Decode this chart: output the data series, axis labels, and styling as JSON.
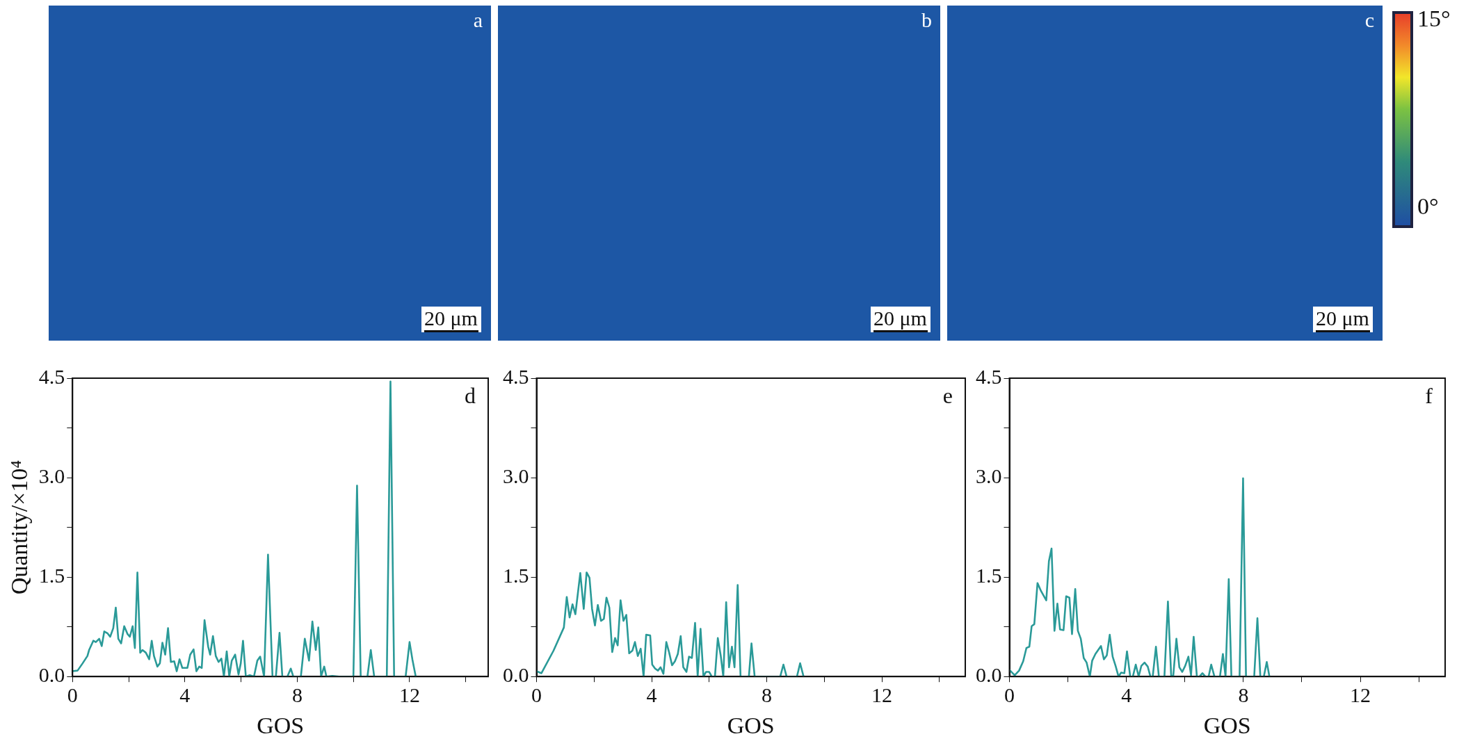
{
  "chart_data": [
    {
      "type": "other",
      "annotations": [
        "a",
        "20 μm"
      ]
    },
    {
      "type": "other",
      "annotations": [
        "b",
        "20 μm"
      ]
    },
    {
      "type": "other",
      "annotations": [
        "c",
        "20 μm",
        "15°",
        "0°"
      ]
    },
    {
      "type": "line",
      "xlabel": "GOS",
      "ylabel": "Quantity/×10⁴",
      "annotations": [
        "d"
      ],
      "marker": "none",
      "line_style": "solid",
      "xlim": [
        0,
        14.8
      ],
      "ylim": [
        0,
        4.5
      ],
      "xticks": [
        {
          "value": 0,
          "label": "0"
        },
        {
          "value": 2,
          "label": null
        },
        {
          "value": 4,
          "label": "4"
        },
        {
          "value": 6,
          "label": null
        },
        {
          "value": 8,
          "label": "8"
        },
        {
          "value": 10,
          "label": null
        },
        {
          "value": 12,
          "label": "12"
        },
        {
          "value": 14,
          "label": null
        }
      ],
      "yticks": [
        {
          "value": 0,
          "label": "0.0"
        },
        {
          "value": 0.75,
          "label": null
        },
        {
          "value": 1.5,
          "label": "1.5"
        },
        {
          "value": 2.25,
          "label": null
        },
        {
          "value": 3,
          "label": "3.0"
        },
        {
          "value": 3.75,
          "label": null
        },
        {
          "value": 4.5,
          "label": "4.5"
        }
      ],
      "series": [
        {
          "color": "#2a9a98",
          "x": [
            0,
            0.18,
            0.36,
            0.53,
            0.59,
            0.74,
            0.83,
            0.95,
            1.04,
            1.13,
            1.25,
            1.34,
            1.45,
            1.54,
            1.63,
            1.73,
            1.84,
            1.96,
            2.04,
            2.14,
            2.22,
            2.31,
            2.41,
            2.49,
            2.61,
            2.73,
            2.82,
            2.9,
            3.02,
            3.11,
            3.2,
            3.3,
            3.4,
            3.5,
            3.62,
            3.71,
            3.81,
            3.91,
            4.09,
            4.19,
            4.31,
            4.41,
            4.51,
            4.6,
            4.7,
            4.83,
            4.9,
            5.0,
            5.1,
            5.2,
            5.3,
            5.39,
            5.49,
            5.58,
            5.67,
            5.79,
            5.91,
            5.99,
            6.07,
            6.17,
            6.31,
            6.46,
            6.58,
            6.68,
            6.82,
            6.96,
            7.12,
            7.24,
            7.37,
            7.47,
            7.65,
            7.77,
            7.86,
            8.13,
            8.27,
            8.42,
            8.54,
            8.66,
            8.75,
            8.85,
            8.96,
            9.04,
            9.25,
            9.49,
            10.0,
            10.13,
            10.26,
            10.5,
            10.62,
            10.74,
            11.19,
            11.32,
            11.45,
            11.86,
            12.0,
            12.1,
            12.22
          ],
          "values": [
            0.08,
            0.09,
            0.2,
            0.31,
            0.4,
            0.54,
            0.52,
            0.57,
            0.46,
            0.68,
            0.65,
            0.6,
            0.73,
            1.04,
            0.57,
            0.5,
            0.76,
            0.64,
            0.6,
            0.76,
            0.43,
            1.57,
            0.36,
            0.4,
            0.36,
            0.26,
            0.54,
            0.31,
            0.15,
            0.2,
            0.51,
            0.33,
            0.73,
            0.22,
            0.23,
            0.08,
            0.26,
            0.13,
            0.13,
            0.33,
            0.41,
            0.08,
            0.15,
            0.13,
            0.85,
            0.45,
            0.33,
            0.61,
            0.31,
            0.22,
            0.27,
            0,
            0.38,
            0,
            0.24,
            0.33,
            0.03,
            0.2,
            0.54,
            0,
            0.02,
            0,
            0.24,
            0.3,
            0,
            1.84,
            0,
            0,
            0.66,
            0,
            0,
            0.12,
            0,
            0,
            0.57,
            0.24,
            0.83,
            0.4,
            0.74,
            0,
            0.15,
            0,
            0.01,
            0,
            0,
            2.88,
            0,
            0,
            0.4,
            0,
            0,
            4.45,
            0,
            0,
            0.52,
            0.26,
            0
          ]
        }
      ]
    },
    {
      "type": "line",
      "xlabel": "GOS",
      "annotations": [
        "e"
      ],
      "marker": "none",
      "line_style": "solid",
      "xlim": [
        0,
        14.9
      ],
      "ylim": [
        0,
        4.5
      ],
      "xticks": [
        {
          "value": 0,
          "label": "0"
        },
        {
          "value": 2,
          "label": null
        },
        {
          "value": 4,
          "label": "4"
        },
        {
          "value": 6,
          "label": null
        },
        {
          "value": 8,
          "label": "8"
        },
        {
          "value": 10,
          "label": null
        },
        {
          "value": 12,
          "label": "12"
        },
        {
          "value": 14,
          "label": null
        }
      ],
      "yticks": [
        {
          "value": 0,
          "label": "0.0"
        },
        {
          "value": 0.75,
          "label": null
        },
        {
          "value": 1.5,
          "label": "1.5"
        },
        {
          "value": 2.25,
          "label": null
        },
        {
          "value": 3,
          "label": "3.0"
        },
        {
          "value": 3.75,
          "label": null
        },
        {
          "value": 4.5,
          "label": "4.5"
        }
      ],
      "series": [
        {
          "color": "#2a9a98",
          "x": [
            0,
            0.17,
            0.59,
            0.95,
            1.05,
            1.15,
            1.25,
            1.35,
            1.52,
            1.64,
            1.74,
            1.84,
            1.93,
            2.03,
            2.13,
            2.24,
            2.34,
            2.43,
            2.53,
            2.63,
            2.73,
            2.82,
            2.92,
            3.02,
            3.12,
            3.22,
            3.33,
            3.42,
            3.52,
            3.62,
            3.72,
            3.81,
            3.95,
            4.02,
            4.12,
            4.22,
            4.31,
            4.41,
            4.51,
            4.61,
            4.71,
            4.81,
            4.91,
            5.01,
            5.1,
            5.21,
            5.3,
            5.4,
            5.51,
            5.6,
            5.7,
            5.8,
            5.89,
            6.0,
            6.09,
            6.2,
            6.3,
            6.4,
            6.49,
            6.59,
            6.69,
            6.79,
            6.88,
            6.99,
            7.09,
            7.38,
            7.47,
            7.58,
            8.47,
            8.58,
            8.69,
            9.05,
            9.16,
            9.28
          ],
          "values": [
            0.08,
            0.05,
            0.39,
            0.74,
            1.2,
            0.89,
            1.09,
            0.94,
            1.56,
            1.02,
            1.57,
            1.49,
            1.02,
            0.77,
            1.08,
            0.84,
            0.87,
            1.19,
            1.04,
            0.37,
            0.58,
            0.47,
            1.15,
            0.84,
            0.93,
            0.35,
            0.39,
            0.52,
            0.31,
            0.42,
            0,
            0.63,
            0.62,
            0.18,
            0.12,
            0.09,
            0.14,
            0.04,
            0.52,
            0.36,
            0.17,
            0.23,
            0.34,
            0.61,
            0.14,
            0.07,
            0.3,
            0.28,
            0.81,
            0,
            0.72,
            0,
            0.07,
            0.07,
            0,
            0,
            0.58,
            0.32,
            0,
            1.12,
            0.14,
            0.45,
            0.14,
            1.38,
            0,
            0,
            0.5,
            0,
            0,
            0.18,
            0,
            0,
            0.2,
            0
          ]
        }
      ]
    },
    {
      "type": "line",
      "xlabel": "GOS",
      "annotations": [
        "f"
      ],
      "marker": "none",
      "line_style": "solid",
      "xlim": [
        0,
        14.9
      ],
      "ylim": [
        0,
        4.5
      ],
      "xticks": [
        {
          "value": 0,
          "label": "0"
        },
        {
          "value": 2,
          "label": null
        },
        {
          "value": 4,
          "label": "4"
        },
        {
          "value": 6,
          "label": null
        },
        {
          "value": 8,
          "label": "8"
        },
        {
          "value": 10,
          "label": null
        },
        {
          "value": 12,
          "label": "12"
        },
        {
          "value": 14,
          "label": null
        }
      ],
      "yticks": [
        {
          "value": 0,
          "label": "0.0"
        },
        {
          "value": 0.75,
          "label": null
        },
        {
          "value": 1.5,
          "label": "1.5"
        },
        {
          "value": 2.25,
          "label": null
        },
        {
          "value": 3,
          "label": "3.0"
        },
        {
          "value": 3.75,
          "label": null
        },
        {
          "value": 4.5,
          "label": "4.5"
        }
      ],
      "series": [
        {
          "color": "#2a9a98",
          "x": [
            0,
            0.18,
            0.33,
            0.47,
            0.58,
            0.68,
            0.76,
            0.85,
            0.96,
            1.08,
            1.26,
            1.35,
            1.44,
            1.54,
            1.64,
            1.73,
            1.85,
            1.94,
            2.05,
            2.14,
            2.25,
            2.34,
            2.44,
            2.54,
            2.64,
            2.75,
            2.83,
            2.94,
            3.13,
            3.23,
            3.33,
            3.43,
            3.53,
            3.63,
            3.73,
            3.82,
            3.93,
            4.02,
            4.13,
            4.22,
            4.32,
            4.42,
            4.51,
            4.62,
            4.73,
            4.82,
            4.9,
            5.01,
            5.11,
            5.3,
            5.42,
            5.53,
            5.6,
            5.71,
            5.81,
            5.91,
            6.01,
            6.12,
            6.21,
            6.3,
            6.41,
            6.5,
            6.6,
            6.7,
            6.81,
            6.9,
            7.01,
            7.2,
            7.3,
            7.39,
            7.5,
            7.59,
            7.87,
            7.99,
            8.09,
            8.37,
            8.48,
            8.58,
            8.7,
            8.8,
            8.89
          ],
          "values": [
            0.1,
            0.02,
            0.09,
            0.23,
            0.43,
            0.45,
            0.76,
            0.79,
            1.41,
            1.29,
            1.15,
            1.74,
            1.93,
            0.69,
            1.1,
            0.71,
            0.7,
            1.21,
            1.19,
            0.64,
            1.32,
            0.69,
            0.57,
            0.28,
            0.21,
            0,
            0.24,
            0.34,
            0.46,
            0.26,
            0.32,
            0.63,
            0.3,
            0.16,
            0,
            0.06,
            0.05,
            0.38,
            0,
            0,
            0.18,
            0,
            0.16,
            0.21,
            0.15,
            0,
            0,
            0.45,
            0,
            0,
            1.13,
            0.02,
            0,
            0.57,
            0.14,
            0.07,
            0.16,
            0.3,
            0.02,
            0.6,
            0,
            0,
            0.05,
            0,
            0,
            0.18,
            0,
            0,
            0.34,
            0,
            1.47,
            0,
            0,
            2.99,
            0,
            0,
            0.88,
            0,
            0,
            0.22,
            0
          ]
        }
      ]
    }
  ]
}
